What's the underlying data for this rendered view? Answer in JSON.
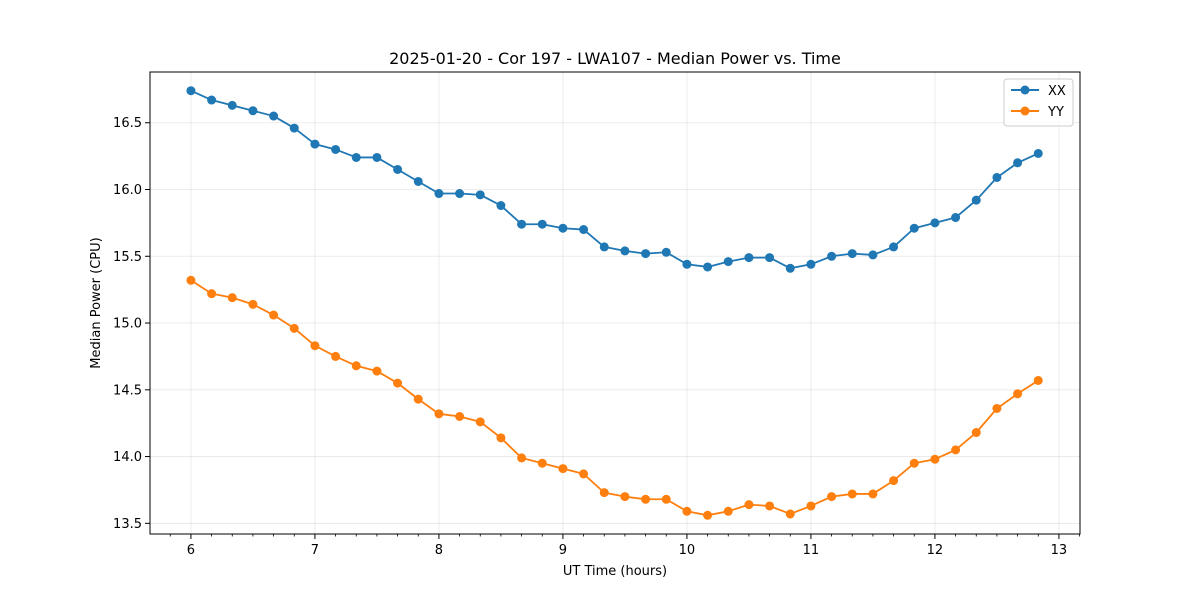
{
  "chart_data": {
    "type": "line",
    "title": "2025-01-20 - Cor 197 - LWA107 - Median Power vs. Time",
    "xlabel": "UT Time (hours)",
    "ylabel": "Median Power (CPU)",
    "xlim": [
      5.67,
      13.17
    ],
    "ylim": [
      13.42,
      16.88
    ],
    "xticks": [
      6,
      7,
      8,
      9,
      10,
      11,
      12,
      13
    ],
    "yticks": [
      13.5,
      14.0,
      14.5,
      15.0,
      15.5,
      16.0,
      16.5
    ],
    "grid": true,
    "legend_position": "top-right",
    "x": [
      6.0,
      6.1667,
      6.3333,
      6.5,
      6.6667,
      6.8333,
      7.0,
      7.1667,
      7.3333,
      7.5,
      7.6667,
      7.8333,
      8.0,
      8.1667,
      8.3333,
      8.5,
      8.6667,
      8.8333,
      9.0,
      9.1667,
      9.3333,
      9.5,
      9.6667,
      9.8333,
      10.0,
      10.1667,
      10.3333,
      10.5,
      10.6667,
      10.8333,
      11.0,
      11.1667,
      11.3333,
      11.5,
      11.6667,
      11.8333,
      12.0,
      12.1667,
      12.3333,
      12.5,
      12.6667,
      12.8333
    ],
    "series": [
      {
        "name": "XX",
        "color": "#1f77b4",
        "values": [
          16.74,
          16.67,
          16.63,
          16.59,
          16.55,
          16.46,
          16.34,
          16.3,
          16.24,
          16.24,
          16.15,
          16.06,
          15.97,
          15.97,
          15.96,
          15.88,
          15.74,
          15.74,
          15.71,
          15.7,
          15.57,
          15.54,
          15.52,
          15.53,
          15.44,
          15.42,
          15.46,
          15.49,
          15.49,
          15.41,
          15.44,
          15.5,
          15.52,
          15.51,
          15.57,
          15.71,
          15.75,
          15.79,
          15.92,
          16.09,
          16.2,
          16.27
        ]
      },
      {
        "name": "YY",
        "color": "#ff7f0e",
        "values": [
          15.32,
          15.22,
          15.19,
          15.14,
          15.06,
          14.96,
          14.83,
          14.75,
          14.68,
          14.64,
          14.55,
          14.43,
          14.32,
          14.3,
          14.26,
          14.14,
          13.99,
          13.95,
          13.91,
          13.87,
          13.73,
          13.7,
          13.68,
          13.68,
          13.59,
          13.56,
          13.59,
          13.64,
          13.63,
          13.57,
          13.63,
          13.7,
          13.72,
          13.72,
          13.82,
          13.95,
          13.98,
          14.05,
          14.18,
          14.36,
          14.47,
          14.57
        ]
      }
    ]
  }
}
